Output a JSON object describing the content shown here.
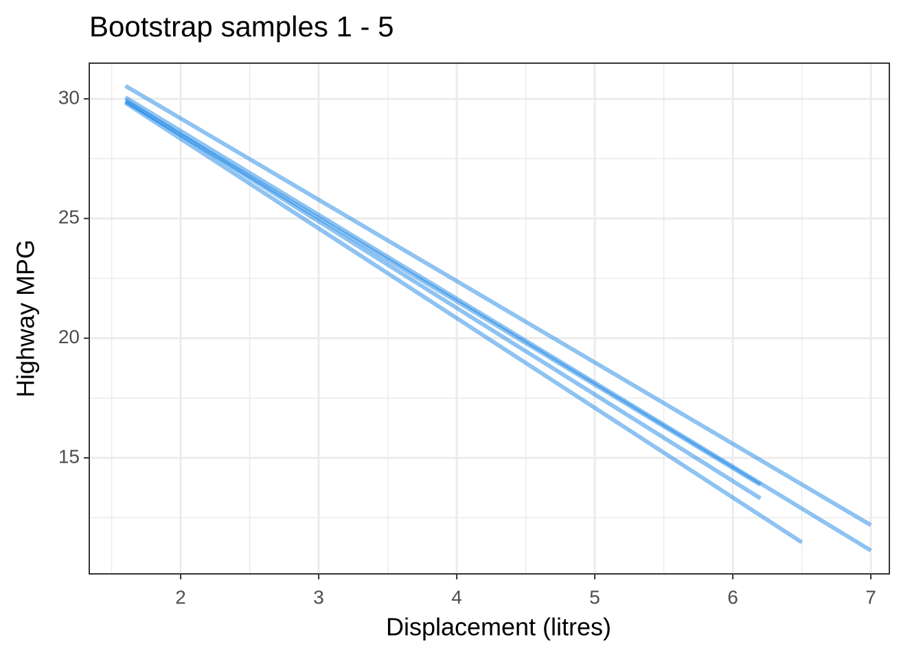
{
  "chart_data": {
    "type": "line",
    "title": "Bootstrap samples 1 - 5",
    "xlabel": "Displacement (litres)",
    "ylabel": "Highway MPG",
    "series": [
      {
        "x": [
          1.6,
          7
        ],
        "values": [
          30.54,
          12.19
        ],
        "color": "#1e88e5"
      },
      {
        "x": [
          1.6,
          6.2
        ],
        "values": [
          29.89,
          13.88
        ],
        "color": "#1e88e5"
      },
      {
        "x": [
          1.6,
          7
        ],
        "values": [
          30.06,
          11.13
        ],
        "color": "#1e88e5"
      },
      {
        "x": [
          1.6,
          6.5
        ],
        "values": [
          29.83,
          11.47
        ],
        "color": "#1e88e5"
      },
      {
        "x": [
          1.6,
          6.2
        ],
        "values": [
          29.94,
          13.31
        ],
        "color": "#1e88e5"
      }
    ],
    "xlim": [
      1.338,
      7.134
    ],
    "xticks": [
      2,
      3,
      4,
      5,
      6,
      7
    ],
    "ylim": [
      10.153,
      31.49
    ],
    "yticks": [
      15,
      20,
      25,
      30
    ],
    "grid": true,
    "minor_grid": true
  }
}
